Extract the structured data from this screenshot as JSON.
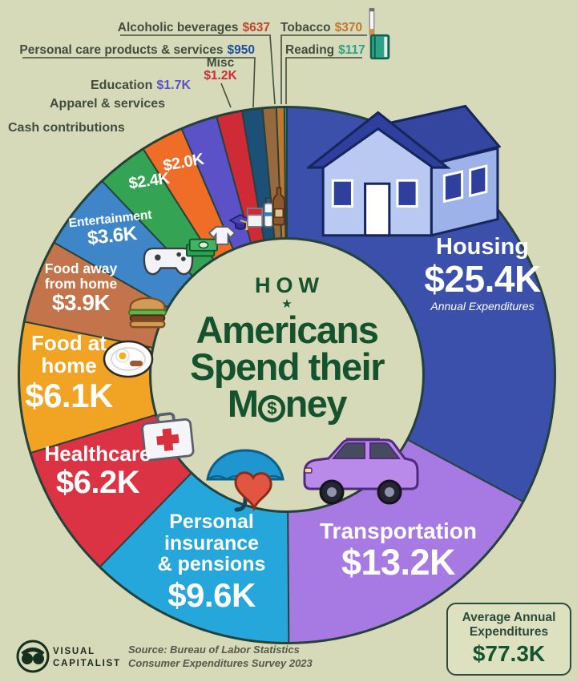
{
  "page": {
    "bg": "#d7dab9",
    "outline": "#24423a",
    "label_color": "#414d3e"
  },
  "title": {
    "kicker": "HOW",
    "star": "★",
    "line1": "Americans",
    "line2": "Spend their",
    "money_prefix": "M",
    "coin_symbol": "$",
    "money_suffix": "ney",
    "color": "#14532e"
  },
  "chart_data": {
    "type": "pie",
    "title": "How Americans Spend their Money",
    "unit": "USD per year (K = thousands)",
    "source": "Source: Bureau of Labor Statistics Consumer Expenditures Survey 2023",
    "legend_position": "around",
    "slices": [
      {
        "label": "Housing",
        "value": 25.4,
        "display": "$25.4K",
        "color": "#3a50aa",
        "icon": "house-icon",
        "sublabel": "Annual Expenditures"
      },
      {
        "label": "Transportation",
        "value": 13.2,
        "display": "$13.2K",
        "color": "#a77ae3",
        "icon": "suv-icon"
      },
      {
        "label": "Personal insurance & pensions",
        "value": 9.6,
        "display": "$9.6K",
        "color": "#25a7dc",
        "icon": "umbrella-heart-icon",
        "label_lines": [
          "Personal",
          "insurance",
          "& pensions"
        ]
      },
      {
        "label": "Healthcare",
        "value": 6.2,
        "display": "$6.2K",
        "color": "#dc3344",
        "icon": "first-aid-icon"
      },
      {
        "label": "Food at home",
        "value": 6.1,
        "display": "$6.1K",
        "color": "#f1a324",
        "icon": "breakfast-plate-icon",
        "label_lines": [
          "Food at",
          "home"
        ]
      },
      {
        "label": "Food away from home",
        "value": 3.9,
        "display": "$3.9K",
        "color": "#c3744a",
        "icon": "burger-icon",
        "label_lines": [
          "Food away",
          "from home"
        ]
      },
      {
        "label": "Entertainment",
        "value": 3.6,
        "display": "$3.6K",
        "color": "#3e86c8",
        "icon": "game-controller-icon"
      },
      {
        "label": "Cash contributions",
        "value": 2.4,
        "display": "$2.4K",
        "color": "#35a354",
        "icon": "cash-bills-icon"
      },
      {
        "label": "Apparel & services",
        "value": 2.0,
        "display": "$2.0K",
        "color": "#ef6d27",
        "icon": "shirt-icon"
      },
      {
        "label": "Education",
        "value": 1.7,
        "display": "$1.7K",
        "color": "#5a52c6",
        "icon": "grad-cap-icon"
      },
      {
        "label": "Misc",
        "value": 1.2,
        "display": "$1.2K",
        "color": "#ce2b36",
        "icon": "misc-pack-icon"
      },
      {
        "label": "Personal care products & services",
        "value": 0.95,
        "display": "$950",
        "color": "#1d5076",
        "icon": "toothpaste-icon",
        "value_text_color": "#1d4f9e"
      },
      {
        "label": "Alcoholic beverages",
        "value": 0.637,
        "display": "$637",
        "color": "#97693f",
        "icon": "beer-bottle-icon",
        "value_text_color": "#c2452e"
      },
      {
        "label": "Tobacco",
        "value": 0.37,
        "display": "$370",
        "color": "#c2762e",
        "icon": "cigarette-icon"
      },
      {
        "label": "Reading",
        "value": 0.117,
        "display": "$117",
        "color": "#2aa389",
        "icon": "book-icon"
      }
    ],
    "total": {
      "line1": "Average Annual",
      "line2": "Expenditures",
      "display": "$77.3K",
      "value": 77.3
    }
  },
  "footer": {
    "brand_line1": "VISUAL",
    "brand_line2": "CAPITALIST",
    "source_line1": "Source: Bureau of Labor Statistics",
    "source_line2": "Consumer Expenditures Survey 2023"
  }
}
